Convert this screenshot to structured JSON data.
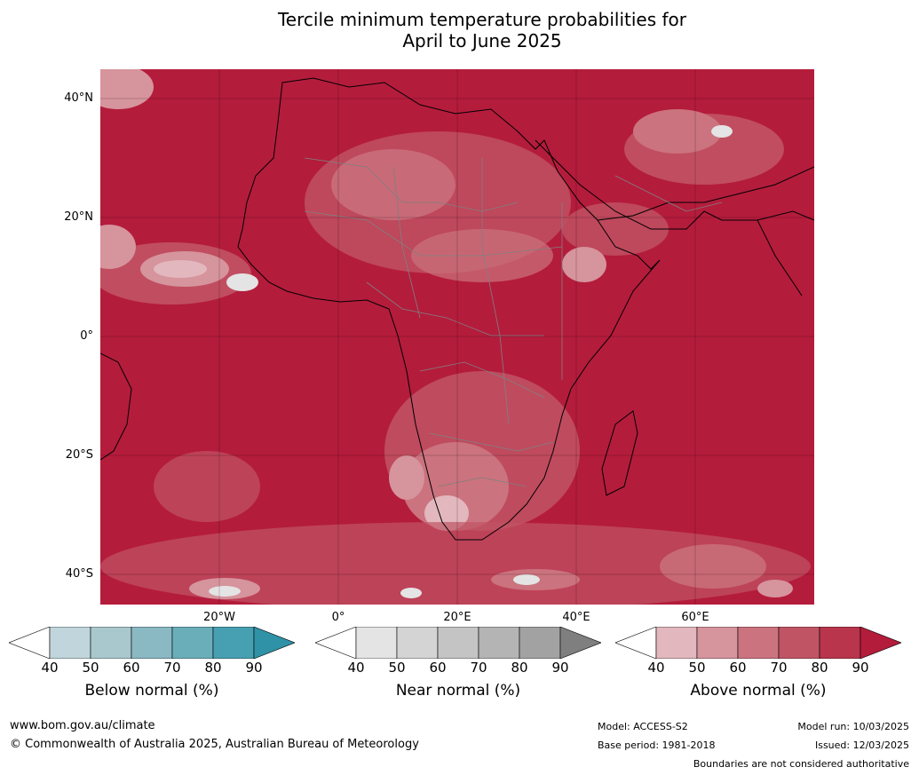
{
  "title_line1": "Tercile minimum temperature probabilities for",
  "title_line2": "April to June 2025",
  "map": {
    "lat_labels": [
      "40°N",
      "20°N",
      "0°",
      "20°S",
      "40°S"
    ],
    "lon_labels": [
      "20°W",
      "0°",
      "20°E",
      "40°E",
      "60°E"
    ],
    "colors": {
      "background_dominant": "#b41c3c",
      "coastline": "#000000",
      "borders": "#808080"
    }
  },
  "colorbars": [
    {
      "label": "Below normal (%)",
      "ticks": [
        "40",
        "50",
        "60",
        "70",
        "80",
        "90"
      ],
      "colors": [
        "#ffffff",
        "#c0d6dc",
        "#a9c8ce",
        "#8ab8c3",
        "#6aaeba",
        "#47a0b1",
        "#2f92a6"
      ]
    },
    {
      "label": "Near normal (%)",
      "ticks": [
        "40",
        "50",
        "60",
        "70",
        "80",
        "90"
      ],
      "colors": [
        "#ffffff",
        "#e4e4e4",
        "#d4d4d4",
        "#c4c4c4",
        "#b4b4b4",
        "#a2a2a2",
        "#7f7f7f"
      ]
    },
    {
      "label": "Above normal (%)",
      "ticks": [
        "40",
        "50",
        "60",
        "70",
        "80",
        "90"
      ],
      "colors": [
        "#ffffff",
        "#e2b7bd",
        "#d6949d",
        "#cb737e",
        "#c15464",
        "#b8354c",
        "#b41c3c"
      ]
    }
  ],
  "footer": {
    "website": "www.bom.gov.au/climate",
    "copyright": "© Commonwealth of Australia 2025, Australian Bureau of Meteorology",
    "model": "Model: ACCESS-S2",
    "base_period": "Base period: 1981-2018",
    "model_run": "Model run: 10/03/2025",
    "issued": "Issued: 12/03/2025",
    "disclaimer": "Boundaries are not considered authoritative"
  }
}
